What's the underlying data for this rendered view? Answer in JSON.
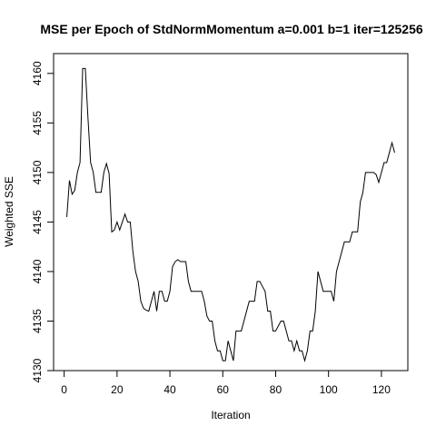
{
  "chart_data": {
    "type": "line",
    "title": "MSE per Epoch of StdNormMomentum a=0.001 b=1 iter=125256",
    "xlabel": "Iteration",
    "ylabel": "Weighted SSE",
    "xlim": [
      -4,
      130
    ],
    "ylim": [
      4130,
      4162
    ],
    "xticks": [
      0,
      20,
      40,
      60,
      80,
      100,
      120
    ],
    "yticks": [
      4130,
      4135,
      4140,
      4145,
      4150,
      4155,
      4160
    ],
    "grid": false,
    "series": [
      {
        "values": [
          4145.5,
          4149.2,
          4147.8,
          4148.2,
          4150.0,
          4151.0,
          4160.5,
          4160.5,
          4155.5,
          4151.0,
          4150.0,
          4148.0,
          4148.0,
          4148.0,
          4150.0,
          4150.9,
          4149.9,
          4144.0,
          4144.2,
          4145.0,
          4144.2,
          4145.0,
          4145.8,
          4145.0,
          4145.0,
          4142.0,
          4140.0,
          4139.0,
          4137.0,
          4136.3,
          4136.1,
          4136.0,
          4137.0,
          4138.0,
          4136.0,
          4138.0,
          4138.0,
          4137.0,
          4137.0,
          4138.0,
          4140.5,
          4141.0,
          4141.2,
          4141.0,
          4141.0,
          4141.0,
          4139.0,
          4138.0,
          4138.0,
          4138.0,
          4138.0,
          4138.0,
          4137.0,
          4135.5,
          4135.0,
          4135.0,
          4133.0,
          4132.0,
          4132.0,
          4131.0,
          4131.0,
          4133.0,
          4132.0,
          4131.0,
          4134.0,
          4134.0,
          4134.0,
          4135.0,
          4136.0,
          4137.0,
          4137.0,
          4137.0,
          4139.0,
          4139.0,
          4138.5,
          4138.0,
          4136.0,
          4136.0,
          4134.0,
          4134.0,
          4134.5,
          4135.0,
          4135.0,
          4134.0,
          4133.0,
          4133.0,
          4132.0,
          4133.0,
          4132.0,
          4132.0,
          4131.0,
          4132.0,
          4134.0,
          4134.0,
          4136.0,
          4140.0,
          4139.0,
          4138.0,
          4138.0,
          4138.0,
          4138.0,
          4137.0,
          4140.0,
          4141.0,
          4142.0,
          4143.0,
          4143.0,
          4143.0,
          4144.0,
          4144.0,
          4144.0,
          4147.0,
          4148.0,
          4150.0,
          4150.0,
          4150.0,
          4150.0,
          4149.8,
          4149.0,
          4150.0,
          4151.0,
          4151.0,
          4152.0,
          4153.0,
          4152.0
        ]
      }
    ]
  }
}
